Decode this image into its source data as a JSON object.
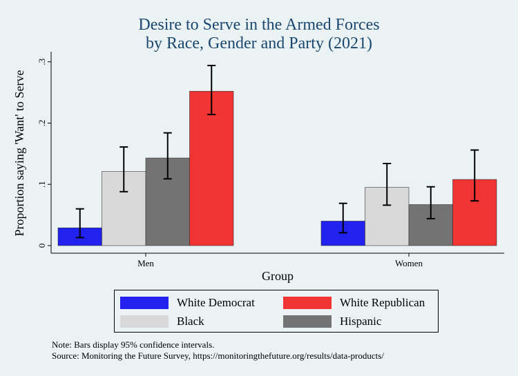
{
  "title_line1": "Desire to Serve in the Armed Forces",
  "title_line2": "by Race, Gender and Party (2021)",
  "note": "Note: Bars display 95% confidence intervals.",
  "source": "Source: Monitoring the Future Survey, https://monitoringthefuture.org/results/data-products/",
  "colors": {
    "background": "#eaf2f3",
    "title": "#1a476f",
    "white_democrat": "#2222ee",
    "black": "#d9d9d9",
    "hispanic": "#737373",
    "white_republican": "#f03333"
  },
  "chart_data": {
    "type": "bar",
    "title": "Desire to Serve in the Armed Forces by Race, Gender and Party (2021)",
    "xlabel": "Group",
    "ylabel": "Proportion saying 'Want' to Serve",
    "ylim": [
      0,
      0.3
    ],
    "yticks": [
      {
        "value": 0,
        "label": "0"
      },
      {
        "value": 0.1,
        "label": ".1"
      },
      {
        "value": 0.2,
        "label": ".2"
      },
      {
        "value": 0.3,
        "label": ".3"
      }
    ],
    "categories": [
      "Men",
      "Women"
    ],
    "series": [
      {
        "name": "White Democrat",
        "color": "#2222ee",
        "values": [
          0.029,
          0.04
        ],
        "ci_low": [
          0.013,
          0.021
        ],
        "ci_high": [
          0.06,
          0.069
        ]
      },
      {
        "name": "Black",
        "color": "#d9d9d9",
        "values": [
          0.121,
          0.095
        ],
        "ci_low": [
          0.088,
          0.066
        ],
        "ci_high": [
          0.161,
          0.134
        ]
      },
      {
        "name": "Hispanic",
        "color": "#737373",
        "values": [
          0.143,
          0.067
        ],
        "ci_low": [
          0.109,
          0.044
        ],
        "ci_high": [
          0.184,
          0.096
        ]
      },
      {
        "name": "White Republican",
        "color": "#f03333",
        "values": [
          0.252,
          0.108
        ],
        "ci_low": [
          0.214,
          0.073
        ],
        "ci_high": [
          0.294,
          0.156
        ]
      }
    ],
    "legend": {
      "placement": "bottom",
      "rows": [
        [
          "White Democrat",
          "White Republican"
        ],
        [
          "Black",
          "Hispanic"
        ]
      ]
    },
    "grid": false
  }
}
